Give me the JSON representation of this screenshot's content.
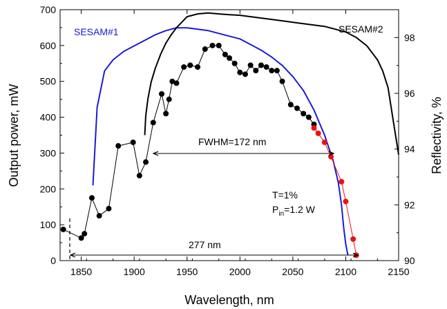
{
  "chart_data": {
    "type": "line",
    "xlabel": "Wavelength, nm",
    "ylabel_left": "Output power, mW",
    "ylabel_right": "Reflectivity, %",
    "xlim": [
      1830,
      2150
    ],
    "ylim_left": [
      0,
      700
    ],
    "ylim_right": [
      90,
      99
    ],
    "x_ticks": [
      1850,
      1900,
      1950,
      2000,
      2050,
      2100,
      2150
    ],
    "y_ticks_left": [
      0,
      100,
      200,
      300,
      400,
      500,
      600,
      700
    ],
    "y_ticks_right": [
      90,
      92,
      94,
      96,
      98
    ],
    "grid": false,
    "series": [
      {
        "name": "SESAM#1",
        "axis": "right",
        "color": "#1a1ad6",
        "x": [
          1861,
          1865,
          1872,
          1880,
          1890,
          1900,
          1910,
          1920,
          1930,
          1940,
          1950,
          1960,
          1970,
          1980,
          1990,
          2000,
          2010,
          2020,
          2030,
          2040,
          2050,
          2060,
          2070,
          2080,
          2088,
          2093,
          2096,
          2098,
          2100,
          2102
        ],
        "values": [
          92.7,
          95.5,
          96.8,
          97.2,
          97.5,
          97.7,
          97.9,
          98.1,
          98.25,
          98.35,
          98.35,
          98.3,
          98.25,
          98.15,
          98.05,
          97.95,
          97.75,
          97.55,
          97.3,
          97.0,
          96.6,
          96.1,
          95.4,
          94.5,
          93.6,
          92.8,
          92.0,
          91.2,
          90.6,
          90.2
        ]
      },
      {
        "name": "SESAM#2",
        "axis": "right",
        "color": "#000000",
        "x": [
          1910,
          1911,
          1913,
          1916,
          1920,
          1925,
          1930,
          1935,
          1940,
          1945,
          1950,
          1960,
          1970,
          1980,
          1990,
          2000,
          2010,
          2020,
          2030,
          2040,
          2050,
          2060,
          2070,
          2080,
          2090,
          2100,
          2110,
          2120,
          2130,
          2135,
          2140,
          2145,
          2150
        ],
        "values": [
          94.5,
          95.2,
          95.8,
          96.4,
          96.9,
          97.4,
          97.8,
          98.1,
          98.35,
          98.55,
          98.75,
          98.85,
          98.88,
          98.85,
          98.82,
          98.8,
          98.75,
          98.7,
          98.65,
          98.6,
          98.55,
          98.5,
          98.45,
          98.4,
          98.3,
          98.2,
          98.0,
          97.7,
          97.2,
          96.8,
          96.2,
          95.0,
          93.8
        ]
      },
      {
        "name": "Output power (black dots)",
        "axis": "left",
        "color": "#000000",
        "x": [
          1833,
          1850,
          1853,
          1860,
          1867,
          1876,
          1885,
          1899,
          1905,
          1911,
          1918,
          1926,
          1930,
          1933,
          1936,
          1940,
          1947,
          1953,
          1960,
          1967,
          1974,
          1980,
          1986,
          1990,
          1995,
          2000,
          2005,
          2010,
          2015,
          2020,
          2025,
          2030,
          2035,
          2040,
          2048,
          2054,
          2060,
          2065,
          2070
        ],
        "values": [
          87,
          63,
          75,
          175,
          125,
          145,
          320,
          330,
          237,
          275,
          385,
          465,
          410,
          450,
          500,
          495,
          540,
          545,
          540,
          590,
          600,
          600,
          575,
          565,
          550,
          525,
          520,
          545,
          530,
          545,
          540,
          530,
          530,
          500,
          435,
          425,
          410,
          400,
          380
        ]
      },
      {
        "name": "Output power (red dots)",
        "axis": "left",
        "color": "#ee1111",
        "x": [
          2070,
          2074,
          2080,
          2086,
          2096,
          2100,
          2107,
          2110
        ],
        "values": [
          370,
          355,
          330,
          290,
          220,
          165,
          60,
          15
        ]
      }
    ],
    "annotations": {
      "sesam1_label": "SESAM#1",
      "sesam2_label": "SESAM#2",
      "fwhm": "FWHM=172 nm",
      "span": "277 nm",
      "t_label": "T=1%",
      "p_main": "P",
      "p_sub": "in",
      "p_rest": "=1.2 W"
    }
  }
}
